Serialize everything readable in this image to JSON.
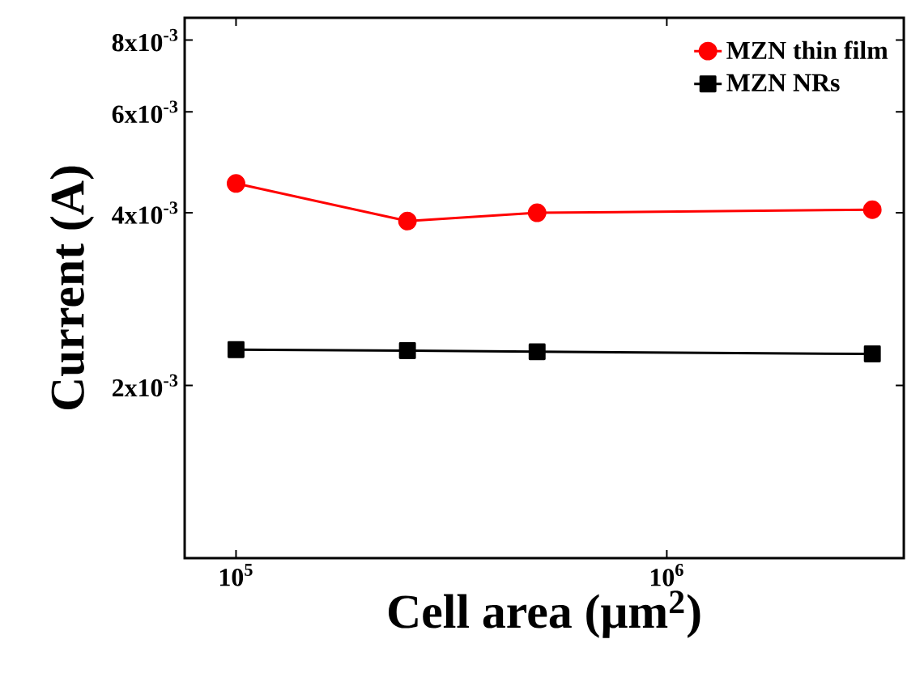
{
  "chart_data": {
    "type": "line",
    "xlabel": "Cell area (μm$^{2}$)",
    "ylabel": "Current (A)",
    "log": "xy",
    "x": [
      100000,
      250000,
      500000,
      3000000
    ],
    "series": [
      {
        "name": "MZN thin film",
        "color": "#ff0000",
        "marker": "circle",
        "values": [
          0.0045,
          0.00387,
          0.004,
          0.00405
        ]
      },
      {
        "name": "MZN NRs",
        "color": "#000000",
        "marker": "square",
        "values": [
          0.00231,
          0.0023,
          0.00229,
          0.00227
        ]
      }
    ],
    "xlim": [
      76000,
      3550000
    ],
    "ylim": [
      0.001,
      0.00875
    ],
    "xticks": [
      {
        "value": 100000,
        "label": "10$^{5}$"
      },
      {
        "value": 1000000,
        "label": "10$^{6}$"
      }
    ],
    "yticks": [
      {
        "value": 0.002,
        "label": "2x10$^{-3}$"
      },
      {
        "value": 0.004,
        "label": "4x10$^{-3}$"
      },
      {
        "value": 0.006,
        "label": "6x10$^{-3}$"
      },
      {
        "value": 0.008,
        "label": "8x10$^{-3}$"
      }
    ],
    "legend": "top right",
    "grid": false,
    "line_style": "solid"
  }
}
